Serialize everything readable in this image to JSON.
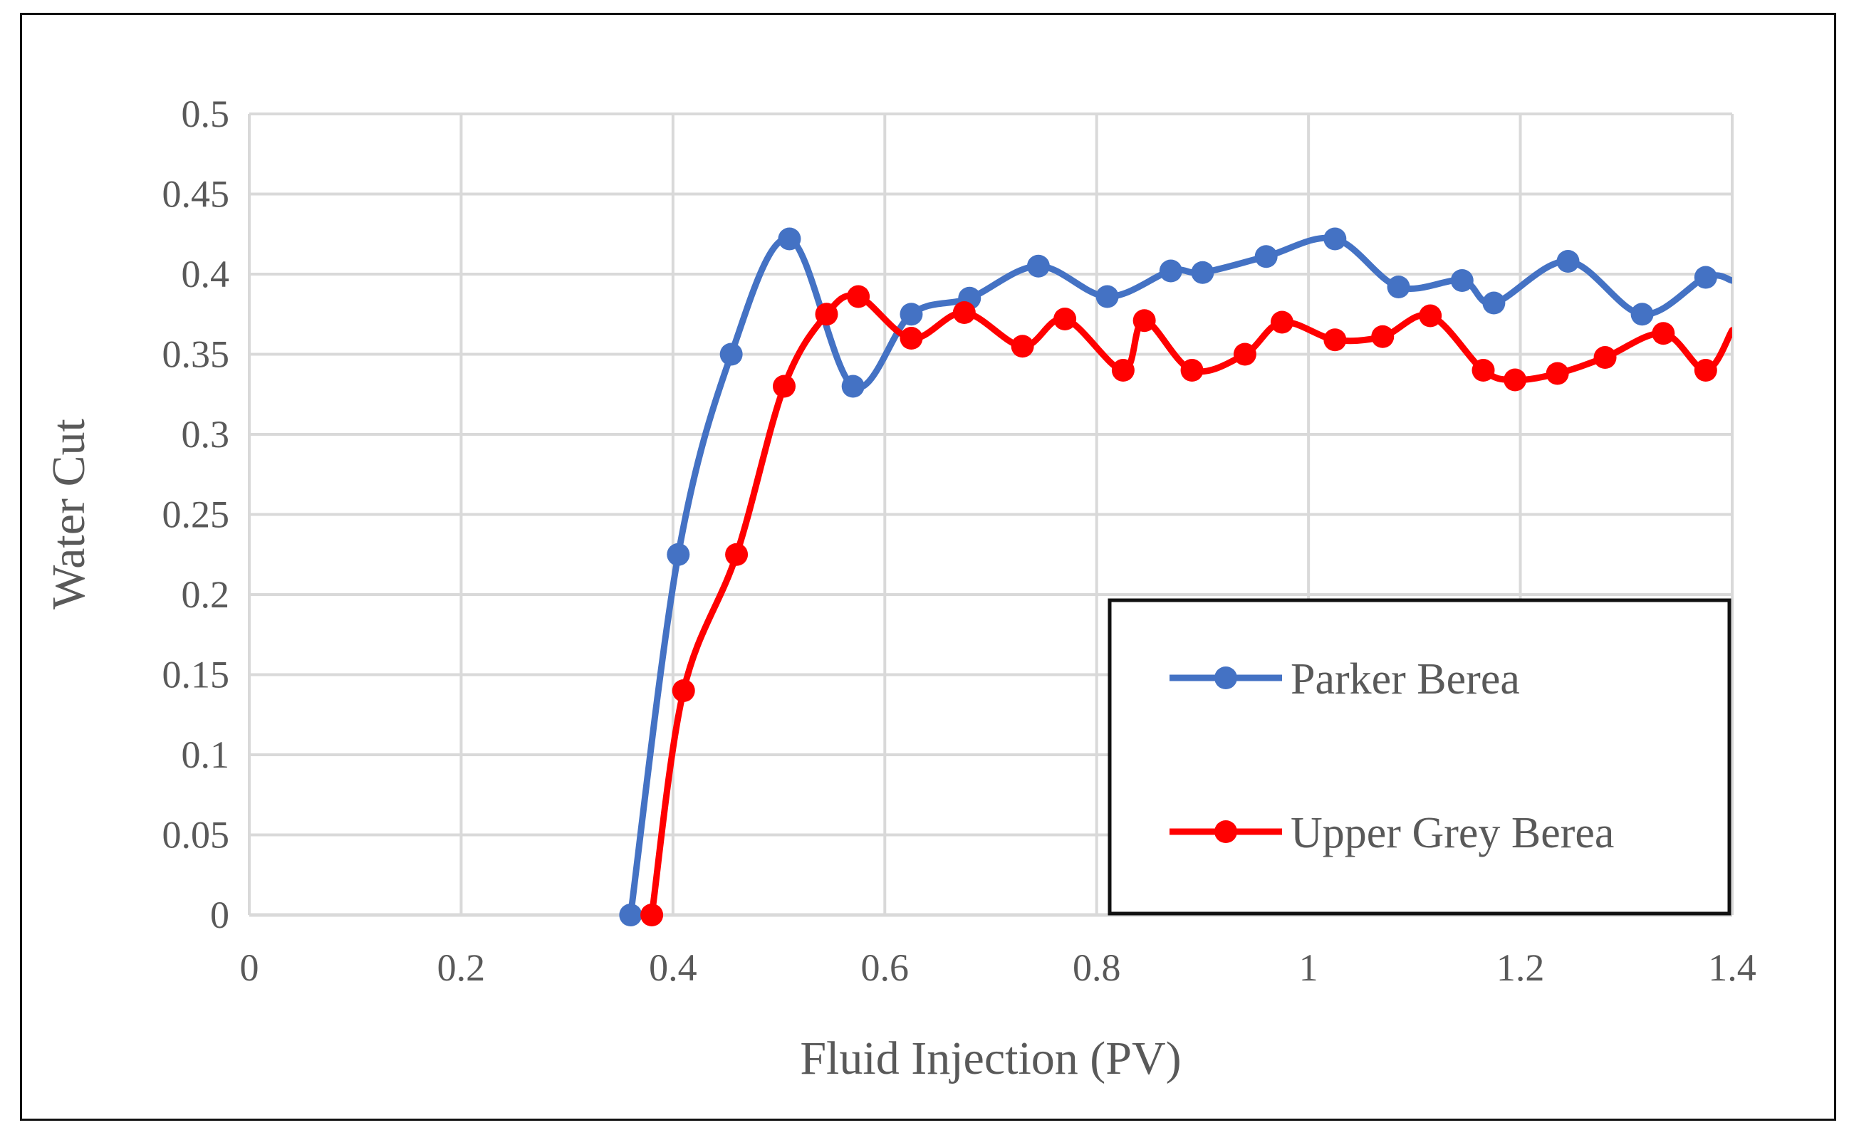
{
  "chart_data": {
    "type": "line",
    "title": "",
    "xlabel": "Fluid Injection (PV)",
    "ylabel": "Water Cut",
    "xlim": [
      0,
      1.4
    ],
    "ylim": [
      0,
      0.5
    ],
    "x_ticks": [
      "0",
      "0.2",
      "0.4",
      "0.6",
      "0.8",
      "1",
      "1.2",
      "1.4"
    ],
    "y_ticks": [
      "0",
      "0.05",
      "0.1",
      "0.15",
      "0.2",
      "0.25",
      "0.3",
      "0.35",
      "0.4",
      "0.45",
      "0.5"
    ],
    "grid": true,
    "legend_position": "bottom-right",
    "series": [
      {
        "name": "Parker Berea",
        "color": "#4472C4",
        "points": [
          [
            0.36,
            0.0
          ],
          [
            0.405,
            0.225
          ],
          [
            0.455,
            0.35
          ],
          [
            0.51,
            0.422
          ],
          [
            0.57,
            0.33
          ],
          [
            0.625,
            0.375
          ],
          [
            0.68,
            0.385
          ],
          [
            0.745,
            0.405
          ],
          [
            0.81,
            0.386
          ],
          [
            0.87,
            0.402
          ],
          [
            0.9,
            0.401
          ],
          [
            0.96,
            0.411
          ],
          [
            1.025,
            0.422
          ],
          [
            1.085,
            0.392
          ],
          [
            1.145,
            0.396
          ],
          [
            1.175,
            0.382
          ],
          [
            1.245,
            0.408
          ],
          [
            1.315,
            0.375
          ],
          [
            1.375,
            0.398
          ],
          [
            1.4,
            0.396
          ]
        ]
      },
      {
        "name": "Upper Grey Berea",
        "color": "#FF0000",
        "points": [
          [
            0.38,
            0.0
          ],
          [
            0.41,
            0.14
          ],
          [
            0.46,
            0.225
          ],
          [
            0.505,
            0.33
          ],
          [
            0.545,
            0.375
          ],
          [
            0.575,
            0.386
          ],
          [
            0.625,
            0.36
          ],
          [
            0.675,
            0.376
          ],
          [
            0.73,
            0.355
          ],
          [
            0.77,
            0.372
          ],
          [
            0.825,
            0.34
          ],
          [
            0.845,
            0.371
          ],
          [
            0.89,
            0.34
          ],
          [
            0.94,
            0.35
          ],
          [
            0.975,
            0.37
          ],
          [
            1.025,
            0.359
          ],
          [
            1.07,
            0.361
          ],
          [
            1.115,
            0.374
          ],
          [
            1.165,
            0.34
          ],
          [
            1.195,
            0.334
          ],
          [
            1.235,
            0.338
          ],
          [
            1.28,
            0.348
          ],
          [
            1.335,
            0.363
          ],
          [
            1.375,
            0.34
          ],
          [
            1.4,
            0.365
          ]
        ]
      }
    ]
  }
}
